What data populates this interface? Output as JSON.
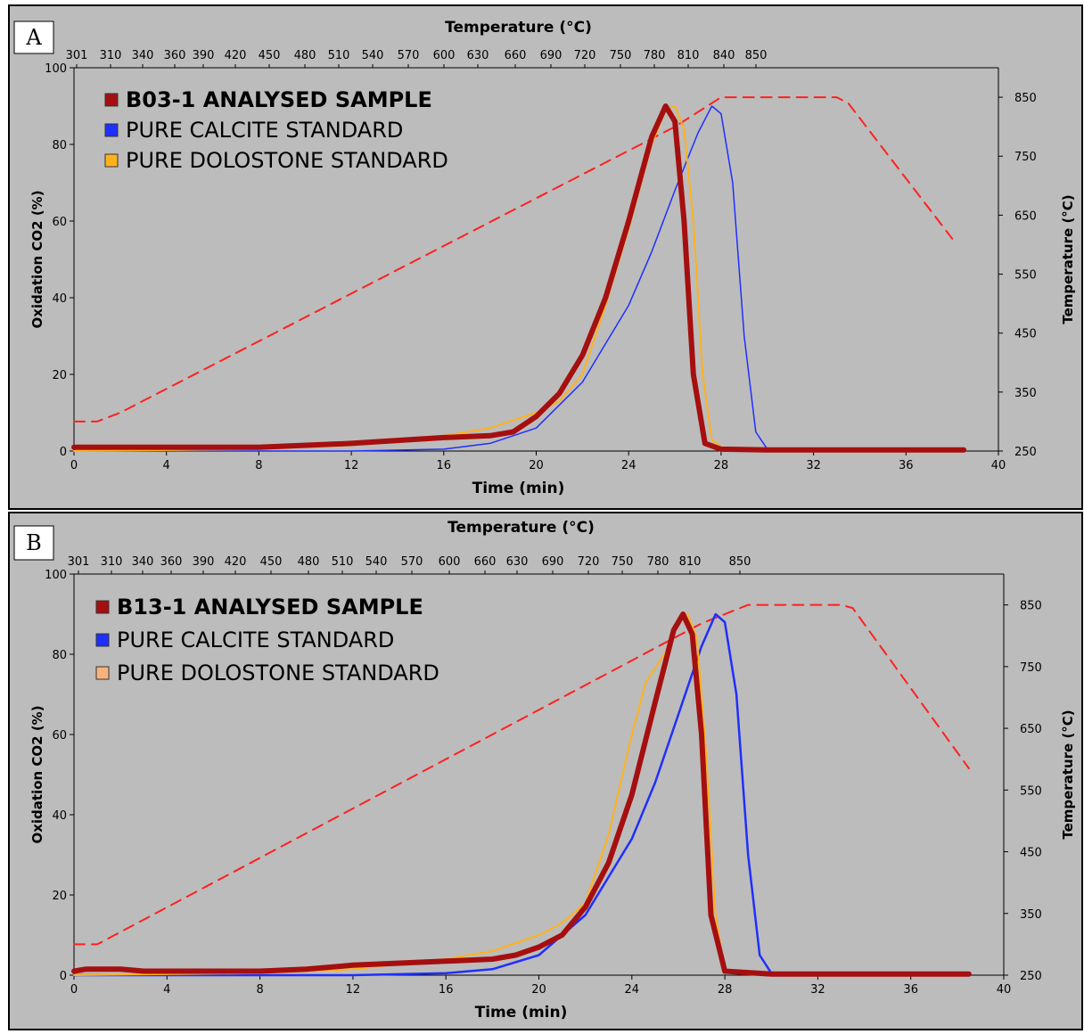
{
  "chart_data": [
    {
      "panel_label": "A",
      "type": "line",
      "xlabel": "Time (min)",
      "ylabel": "Oxidation CO2 (%)",
      "y2label": "Temperature (°C)",
      "x2label": "Temperature (°C)",
      "xlim": [
        0,
        40
      ],
      "ylim": [
        0,
        100
      ],
      "y2lim": [
        250,
        900
      ],
      "xticks": [
        "0",
        "4",
        "8",
        "12",
        "16",
        "20",
        "24",
        "28",
        "32",
        "36",
        "40"
      ],
      "yticks": [
        "0",
        "20",
        "40",
        "60",
        "80",
        "100"
      ],
      "y2ticks": [
        "250",
        "350",
        "450",
        "550",
        "650",
        "750",
        "850"
      ],
      "top_ticks": [
        "301",
        "310",
        "340",
        "360",
        "390",
        "420",
        "450",
        "480",
        "510",
        "540",
        "570",
        "600",
        "630",
        "660",
        "690",
        "720",
        "750",
        "780",
        "810",
        "840",
        "850"
      ],
      "legend_position": "top-left",
      "series": [
        {
          "name": "B03-1 ANALYSED SAMPLE",
          "color": "#a50f0f",
          "width": 6,
          "bold": true,
          "x": [
            0,
            4,
            8,
            12,
            16,
            18,
            19,
            20,
            21,
            22,
            23,
            24,
            25,
            25.6,
            26,
            26.4,
            26.8,
            27.3,
            28,
            30,
            34,
            38.5
          ],
          "y": [
            1,
            1,
            1,
            2,
            3.5,
            4,
            5,
            9,
            15,
            25,
            40,
            60,
            82,
            90,
            86,
            60,
            20,
            2,
            0.5,
            0.3,
            0.3,
            0.3
          ]
        },
        {
          "name": "PURE CALCITE STANDARD",
          "color": "#1f2fff",
          "width": 1.5,
          "bold": false,
          "x": [
            0,
            8,
            12,
            16,
            18,
            20,
            22,
            24,
            25,
            26,
            27,
            27.6,
            28,
            28.5,
            29,
            29.5,
            30,
            32,
            38.5
          ],
          "y": [
            0,
            0,
            0,
            0.5,
            2,
            6,
            18,
            38,
            52,
            68,
            83,
            90,
            88,
            70,
            30,
            5,
            0.5,
            0.3,
            0.3
          ]
        },
        {
          "name": "PURE DOLOSTONE STANDARD",
          "color": "#ffb21c",
          "width": 2,
          "bold": false,
          "x": [
            0,
            8,
            12,
            16,
            18,
            20,
            21,
            22,
            23,
            24,
            25,
            25.6,
            26,
            26.4,
            26.8,
            27.2,
            27.6,
            28,
            30,
            38.5
          ],
          "y": [
            0,
            0.5,
            1.5,
            4,
            6,
            10,
            13,
            20,
            38,
            58,
            80,
            89,
            90,
            84,
            60,
            20,
            3,
            1,
            0.3,
            0.3
          ]
        },
        {
          "name": "",
          "axis": "y2",
          "color": "#ff2020",
          "width": 2,
          "dash": "12 8",
          "x": [
            0,
            1,
            2,
            26,
            28,
            28.5,
            33,
            33.5,
            38
          ],
          "y": [
            300,
            300,
            315,
            800,
            850,
            850,
            850,
            840,
            610
          ]
        }
      ]
    },
    {
      "panel_label": "B",
      "type": "line",
      "xlabel": "Time (min)",
      "ylabel": "Oxidation CO2 (%)",
      "y2label": "Temperature (°C)",
      "x2label": "Temperature (°C)",
      "xlim": [
        0,
        40
      ],
      "ylim": [
        0,
        100
      ],
      "y2lim": [
        250,
        900
      ],
      "xticks": [
        "0",
        "4",
        "8",
        "12",
        "16",
        "20",
        "24",
        "28",
        "32",
        "36",
        "40"
      ],
      "yticks": [
        "0",
        "20",
        "40",
        "60",
        "80",
        "100"
      ],
      "y2ticks": [
        "250",
        "350",
        "450",
        "550",
        "650",
        "750",
        "850"
      ],
      "top_ticks": [
        "301",
        "310",
        "340",
        "360",
        "390",
        "420",
        "450",
        "480",
        "510",
        "540",
        "570",
        "600",
        "660",
        "630",
        "690",
        "720",
        "750",
        "780",
        "810",
        "850"
      ],
      "legend_position": "top-left",
      "series": [
        {
          "name": "B13-1 ANALYSED SAMPLE",
          "color": "#a50f0f",
          "width": 6,
          "bold": true,
          "x": [
            0,
            0.5,
            2,
            3,
            8,
            10,
            12,
            16,
            18,
            19,
            20,
            21,
            22,
            23,
            24,
            25,
            25.8,
            26.2,
            26.6,
            27,
            27.4,
            28,
            30,
            34,
            38.5
          ],
          "y": [
            1,
            1.5,
            1.5,
            1,
            1,
            1.5,
            2.5,
            3.5,
            4,
            5,
            7,
            10,
            17,
            28,
            45,
            68,
            86,
            90,
            85,
            60,
            15,
            1,
            0.3,
            0.3,
            0.3
          ]
        },
        {
          "name": "PURE CALCITE STANDARD",
          "color": "#1f2fff",
          "width": 2.5,
          "bold": false,
          "x": [
            0,
            8,
            12,
            16,
            18,
            20,
            22,
            24,
            25,
            26,
            27,
            27.6,
            28,
            28.5,
            29,
            29.5,
            30,
            32,
            38.5
          ],
          "y": [
            0,
            0,
            0,
            0.5,
            1.5,
            5,
            15,
            34,
            48,
            65,
            82,
            90,
            88,
            70,
            30,
            5,
            0.5,
            0.3,
            0.3
          ]
        },
        {
          "name": "PURE DOLOSTONE STANDARD",
          "color": "#ffb21c",
          "width": 2,
          "bold": false,
          "x": [
            0,
            8,
            12,
            16,
            18,
            20,
            21,
            22,
            23,
            24,
            24.6,
            25.4,
            26,
            26.4,
            26.8,
            27.2,
            27.6,
            28,
            30,
            38.5
          ],
          "y": [
            0,
            0.5,
            1.5,
            4,
            6,
            10,
            13,
            18,
            35,
            60,
            73,
            80,
            88,
            90,
            84,
            55,
            15,
            1,
            0.3,
            0.3
          ]
        },
        {
          "name": "",
          "axis": "y2",
          "color": "#ff2020",
          "width": 2,
          "dash": "12 8",
          "x": [
            0,
            1,
            2,
            27,
            29,
            29.5,
            33,
            33.5,
            38.5
          ],
          "y": [
            300,
            300,
            320,
            820,
            850,
            850,
            850,
            845,
            585
          ]
        }
      ],
      "legend_swatch_override": {
        "PURE DOLOSTONE STANDARD": "#f8b37c"
      }
    }
  ]
}
